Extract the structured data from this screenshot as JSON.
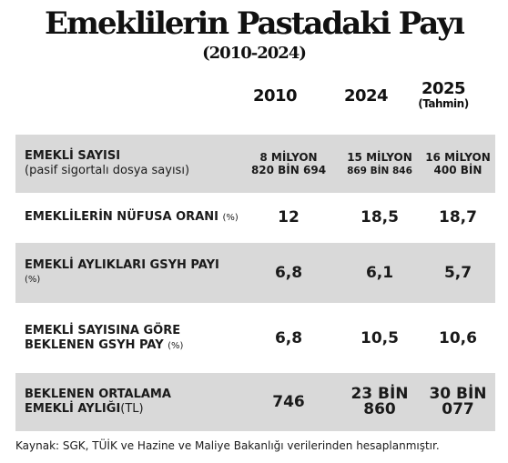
{
  "title": "Emeklilerin Pastadaki Payı",
  "subtitle": "(2010-2024)",
  "columns": [
    {
      "label": "2010",
      "sub": ""
    },
    {
      "label": "2024",
      "sub": ""
    },
    {
      "label": "2025",
      "sub": "(Tahmin)"
    }
  ],
  "rows": [
    {
      "label": "EMEKLİ SAYISI",
      "sub": "(pasif sigortalı dosya sayısı)",
      "values": [
        [
          "8 MİLYON",
          "820 BİN 694"
        ],
        [
          "15 MİLYON",
          "869 BİN 846"
        ],
        [
          "16 MİLYON",
          "400 BİN"
        ]
      ]
    },
    {
      "label": "EMEKLİLERİN NÜFUSA ORANI",
      "unit": "(%)",
      "values": [
        "12",
        "18,5",
        "18,7"
      ]
    },
    {
      "label": "EMEKLİ AYLIKLARI GSYH PAYI",
      "unit": "(%)",
      "values": [
        "6,8",
        "6,1",
        "5,7"
      ]
    },
    {
      "label_line1": "EMEKLİ SAYISINA GÖRE",
      "label_line2": "BEKLENEN GSYH PAY",
      "unit": "(%)",
      "values": [
        "6,8",
        "10,5",
        "10,6"
      ]
    },
    {
      "label_line1": "BEKLENEN ORTALAMA",
      "label_line2": "EMEKLİ AYLIĞI",
      "unit": "(TL)",
      "values": [
        [
          "746",
          ""
        ],
        [
          "23 BİN",
          "860"
        ],
        [
          "30 BİN",
          "077"
        ]
      ]
    }
  ],
  "source": "Kaynak: SGK, TÜİK ve Hazine ve Maliye Bakanlığı verilerinden hesaplanmıştır.",
  "colors": {
    "row_shade": "#d9d9d9",
    "text": "#1a1a1a"
  }
}
